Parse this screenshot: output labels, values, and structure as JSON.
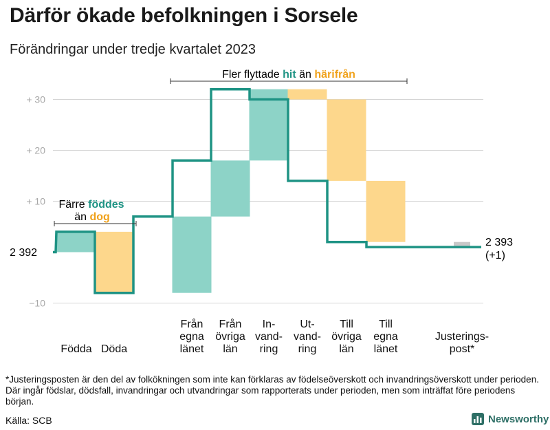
{
  "title": "Därför ökade befolkningen i Sorsele",
  "subtitle": "Förändringar under tredje kvartalet 2023",
  "chart_data": {
    "type": "waterfall",
    "baseline": 0,
    "start_label": "2  392",
    "end_label_line1": "2 393",
    "end_label_line2": "(+1)",
    "ylim": [
      -12,
      33
    ],
    "yticks": [
      {
        "value": 30,
        "label": "+  30"
      },
      {
        "value": 20,
        "label": "+  20"
      },
      {
        "value": 10,
        "label": "+  10"
      },
      {
        "value": -10,
        "label": "−10"
      }
    ],
    "steps": [
      {
        "name": "Födda",
        "label_lines": [
          "Födda"
        ],
        "from": 0,
        "to": 4,
        "color": "#8dd3c7"
      },
      {
        "name": "Döda",
        "label_lines": [
          "Döda"
        ],
        "from": 4,
        "to": -8,
        "color": "#fdd78c"
      },
      {
        "name": "Från egna länet",
        "label_lines": [
          "Från",
          "egna",
          "länet"
        ],
        "from": -8,
        "to": 7,
        "color": "#8dd3c7"
      },
      {
        "name": "Från övriga län",
        "label_lines": [
          "Från",
          "övriga",
          "län"
        ],
        "from": 7,
        "to": 18,
        "color": "#8dd3c7"
      },
      {
        "name": "Invandring",
        "label_lines": [
          "In-",
          "vand-",
          "ring"
        ],
        "from": 18,
        "to": 32,
        "color": "#8dd3c7"
      },
      {
        "name": "Utvandring",
        "label_lines": [
          "Ut-",
          "vand-",
          "ring"
        ],
        "from": 32,
        "to": 30,
        "color": "#fdd78c"
      },
      {
        "name": "Till övriga län",
        "label_lines": [
          "Till",
          "övriga",
          "län"
        ],
        "from": 30,
        "to": 14,
        "color": "#fdd78c"
      },
      {
        "name": "Till egna länet",
        "label_lines": [
          "Till",
          "egna",
          "länet"
        ],
        "from": 14,
        "to": 2,
        "color": "#fdd78c"
      },
      {
        "name": "Justeringspost*",
        "label_lines": [
          "Justerings-",
          "post*"
        ],
        "from": 2,
        "to": 1,
        "color": "#c8c8c8"
      }
    ],
    "annotations": {
      "births": {
        "prefix": "Färre ",
        "emph1": "föddes",
        "middle": "än ",
        "emph2": "dog"
      },
      "migration": {
        "prefix": "Fler flyttade ",
        "emph1": "hit",
        "middle": " än ",
        "emph2": "härifrån"
      }
    }
  },
  "colors": {
    "increase": "#8dd3c7",
    "decrease": "#fdd78c",
    "adjustment": "#c8c8c8",
    "line": "#1e9384",
    "teal_text": "#1e9384",
    "orange_text": "#f0a21c",
    "grid": "#d4d4d4"
  },
  "footnote": "*Justeringsposten är den del av folkökningen som inte kan förklaras av födelseöverskott och invandringsöverskott under perioden. Där ingår födslar, dödsfall, invandringar och utvandringar som rapporterats under perioden, men som inträffat före periodens början.",
  "source": "Källa: SCB",
  "brand": "Newsworthy"
}
